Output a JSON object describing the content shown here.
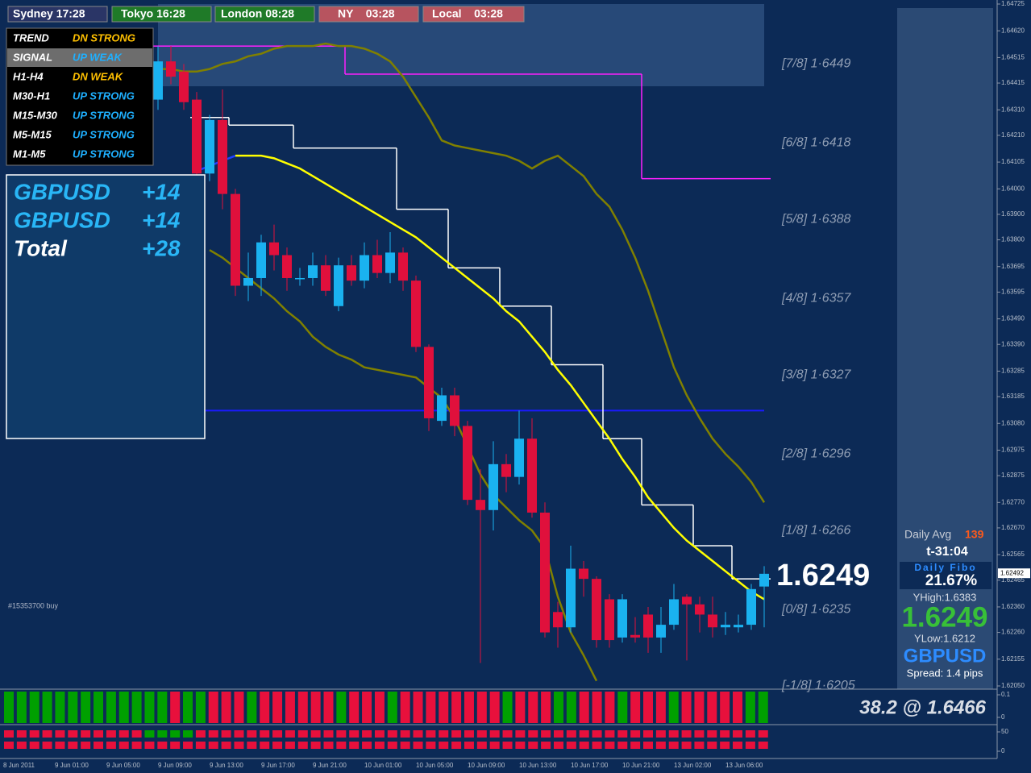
{
  "sessions": [
    "Sydney 17:28",
    "Tokyo 16:28",
    "London 08:28",
    "NY    03:28",
    "Local    03:28"
  ],
  "trend_table": {
    "rows": [
      [
        "TREND",
        "DN STRONG"
      ],
      [
        "SIGNAL",
        "UP WEAK"
      ],
      [
        "H1-H4",
        "DN WEAK"
      ],
      [
        "M30-H1",
        "UP STRONG"
      ],
      [
        "M15-M30",
        "UP STRONG"
      ],
      [
        "M5-M15",
        "UP STRONG"
      ],
      [
        "M1-M5",
        "UP STRONG"
      ]
    ]
  },
  "positions": {
    "rows": [
      [
        "GBPUSD",
        "+14"
      ],
      [
        "GBPUSD",
        "+14"
      ],
      [
        "Total",
        "+28"
      ]
    ]
  },
  "order_note": "#15353700 buy",
  "price_label": "1.6249",
  "info_panel": {
    "daily_avg_label": "Daily Avg",
    "daily_avg": 139,
    "timer": "t-31:04",
    "fibo_label": "Daily Fibo",
    "fibo_value": "21.67%",
    "yhigh": "YHigh:1.6383",
    "price": "1.6249",
    "ylow": "YLow:1.6212",
    "symbol": "GBPUSD",
    "spread": "Spread: 1.4 pips"
  },
  "chart_data": {
    "type": "candlestick",
    "up_color": "#1ab2f0",
    "down_color": "#e0103c",
    "ylim": [
      1.6205,
      1.64725
    ],
    "yticks": [
      1.64725,
      {
        "value": 1.6462,
        "label": "1.64620"
      },
      1.64515,
      1.64415,
      {
        "value": 1.6431,
        "label": "1.64310"
      },
      {
        "value": 1.6421,
        "label": "1.64210"
      },
      1.64105,
      {
        "value": 1.64,
        "label": "1.64000"
      },
      {
        "value": 1.639,
        "label": "1.63900"
      },
      {
        "value": 1.638,
        "label": "1.63800"
      },
      1.63695,
      1.63595,
      {
        "value": 1.6349,
        "label": "1.63490"
      },
      {
        "value": 1.6339,
        "label": "1.63390"
      },
      1.63285,
      1.63185,
      {
        "value": 1.6308,
        "label": "1.63080"
      },
      1.62975,
      1.62875,
      {
        "value": 1.6277,
        "label": "1.62770"
      },
      {
        "value": 1.6267,
        "label": "1.62670"
      },
      1.62565,
      1.62465,
      {
        "value": 1.6236,
        "label": "1.62360"
      },
      {
        "value": 1.6226,
        "label": "1.62260"
      },
      1.62155,
      {
        "value": 1.6205,
        "label": "1.62050"
      }
    ],
    "current_price": 1.62492,
    "time_labels": [
      "8 Jun 2011",
      "9 Jun 01:00",
      "9 Jun 05:00",
      "9 Jun 09:00",
      "9 Jun 13:00",
      "9 Jun 17:00",
      "9 Jun 21:00",
      "10 Jun 01:00",
      "10 Jun 05:00",
      "10 Jun 09:00",
      "10 Jun 13:00",
      "10 Jun 17:00",
      "10 Jun 21:00",
      "13 Jun 02:00",
      "13 Jun 06:00"
    ],
    "open": [
      1.6435,
      1.645,
      1.6446,
      1.6435,
      1.6406,
      1.6427,
      1.6398,
      1.6362,
      1.6365,
      1.6379,
      1.6374,
      1.6365,
      1.6365,
      1.637,
      1.6354,
      1.637,
      1.6364,
      1.6374,
      1.6367,
      1.6375,
      1.6364,
      1.6338,
      1.6309,
      1.6319,
      1.6307,
      1.6278,
      1.6274,
      1.6292,
      1.6287,
      1.6302,
      1.6273,
      1.6234,
      1.6228,
      1.6251,
      1.6247,
      1.6239,
      1.6224,
      1.6225,
      1.6233,
      1.6224,
      1.6229,
      1.624,
      1.6237,
      1.6233,
      1.6228,
      1.6228,
      1.6229,
      1.6244
    ],
    "high": [
      1.6456,
      1.6456,
      1.6449,
      1.6438,
      1.6429,
      1.6439,
      1.64,
      1.6375,
      1.6382,
      1.6386,
      1.6377,
      1.6369,
      1.6375,
      1.6374,
      1.6373,
      1.6374,
      1.6379,
      1.638,
      1.6383,
      1.6377,
      1.6366,
      1.6339,
      1.6322,
      1.6322,
      1.6309,
      1.629,
      1.6301,
      1.6296,
      1.6313,
      1.631,
      1.6277,
      1.6238,
      1.626,
      1.6254,
      1.6248,
      1.6241,
      1.6241,
      1.6232,
      1.6236,
      1.6236,
      1.6245,
      1.6241,
      1.624,
      1.624,
      1.6234,
      1.6233,
      1.6245,
      1.6252
    ],
    "low": [
      1.6431,
      1.6441,
      1.6431,
      1.6403,
      1.6403,
      1.6392,
      1.6358,
      1.6356,
      1.6358,
      1.6368,
      1.636,
      1.6362,
      1.6362,
      1.6358,
      1.6352,
      1.6362,
      1.6361,
      1.6365,
      1.6363,
      1.636,
      1.6336,
      1.6305,
      1.6307,
      1.6303,
      1.6276,
      1.6214,
      1.6266,
      1.6281,
      1.6284,
      1.6271,
      1.6224,
      1.622,
      1.6226,
      1.624,
      1.622,
      1.622,
      1.6222,
      1.6222,
      1.6218,
      1.6218,
      1.6227,
      1.6215,
      1.6226,
      1.6224,
      1.6225,
      1.6226,
      1.6227,
      1.6228
    ],
    "close": [
      1.645,
      1.6444,
      1.6434,
      1.6406,
      1.6427,
      1.6398,
      1.6362,
      1.6365,
      1.6379,
      1.6374,
      1.6365,
      1.6365,
      1.637,
      1.636,
      1.637,
      1.6364,
      1.6374,
      1.6367,
      1.6375,
      1.6364,
      1.6338,
      1.631,
      1.6319,
      1.6307,
      1.6278,
      1.6274,
      1.6292,
      1.6287,
      1.6302,
      1.6273,
      1.6226,
      1.6228,
      1.6251,
      1.6247,
      1.6223,
      1.6223,
      1.6239,
      1.6224,
      1.6224,
      1.6229,
      1.6239,
      1.6237,
      1.6233,
      1.6228,
      1.6229,
      1.6229,
      1.6243,
      1.6249
    ],
    "lines": [
      {
        "color": "#ff20ff",
        "style": "step",
        "values": [
          1.6456,
          1.6456,
          1.6456,
          1.6456,
          1.6456,
          1.6456,
          1.6456,
          1.6456,
          1.6456,
          1.6456,
          1.6456,
          1.6456,
          1.6456,
          1.6456,
          1.6456,
          1.6445,
          1.6445,
          1.6445,
          1.6445,
          1.6445,
          1.6445,
          1.6445,
          1.6445,
          1.6445,
          1.6445,
          1.6445,
          1.6445,
          1.6445,
          1.6445,
          1.6445,
          1.6445,
          1.6445,
          1.6445,
          1.6445,
          1.6445,
          1.6445,
          1.6445,
          1.6445,
          1.6404,
          1.6404,
          1.6404,
          1.6404,
          1.6404,
          1.6404,
          1.6404,
          1.6404,
          1.6404,
          1.6404
        ]
      },
      {
        "color": "#ffffff",
        "style": "step",
        "values": [
          null,
          null,
          null,
          1.6428,
          1.6428,
          1.6428,
          1.6425,
          1.6425,
          1.6425,
          1.6425,
          1.6425,
          1.6416,
          1.6416,
          1.6416,
          1.6416,
          1.6416,
          1.6416,
          1.6416,
          1.6416,
          1.6392,
          1.6392,
          1.6392,
          1.6392,
          1.6369,
          1.6369,
          1.6369,
          1.6369,
          1.6354,
          1.6354,
          1.6354,
          1.6354,
          1.6331,
          1.6331,
          1.6331,
          1.6331,
          1.6302,
          1.6302,
          1.6302,
          1.6276,
          1.6276,
          1.6276,
          1.6276,
          1.626,
          1.626,
          1.626,
          1.6247,
          1.6247,
          1.6247
        ]
      },
      {
        "color": "#808000",
        "style": "line",
        "values": [
          1.6447,
          1.6447,
          1.6446,
          1.6446,
          1.6447,
          1.6449,
          1.645,
          1.6452,
          1.6453,
          1.6455,
          1.6456,
          1.6456,
          1.6456,
          1.6457,
          1.6456,
          1.6456,
          1.6455,
          1.6453,
          1.645,
          1.6444,
          1.6436,
          1.6428,
          1.6419,
          1.6417,
          1.6416,
          1.6415,
          1.6414,
          1.6413,
          1.6411,
          1.6408,
          1.6411,
          1.6413,
          1.6409,
          1.6405,
          1.6398,
          1.6393,
          1.6384,
          1.6373,
          1.636,
          1.6345,
          1.633,
          1.6319,
          1.631,
          1.6302,
          1.6296,
          1.6291,
          1.6285,
          1.6277
        ]
      },
      {
        "color": "#808000",
        "style": "line",
        "values": [
          null,
          null,
          null,
          null,
          1.6376,
          1.6373,
          1.6369,
          1.6365,
          1.6361,
          1.6357,
          1.6352,
          1.6348,
          1.6342,
          1.6338,
          1.6335,
          1.6333,
          1.633,
          1.6329,
          1.6328,
          1.6327,
          1.6326,
          1.6322,
          1.6318,
          1.631,
          1.6299,
          1.6288,
          1.628,
          1.6275,
          1.627,
          1.6266,
          1.6259,
          1.624,
          1.6226,
          1.6217,
          1.6207,
          null,
          null,
          null,
          null,
          null,
          null,
          null,
          null,
          null,
          null,
          null,
          null,
          null
        ]
      },
      {
        "color": "#2040ff",
        "style": "line",
        "values": [
          null,
          null,
          null,
          1.6407,
          1.6409,
          1.6411,
          1.6413,
          null,
          null,
          null,
          null,
          null,
          null,
          null,
          null,
          null,
          null,
          null,
          null,
          null,
          null,
          null,
          null,
          null,
          null,
          null,
          null,
          null,
          null,
          null,
          null,
          null,
          null,
          null,
          null,
          null,
          null,
          null,
          null,
          null,
          null,
          null,
          null,
          null,
          null,
          null,
          null,
          null
        ]
      },
      {
        "color": "#ffff00",
        "style": "line",
        "values": [
          null,
          null,
          null,
          null,
          null,
          null,
          1.6413,
          1.6413,
          1.6413,
          1.6412,
          1.641,
          1.6408,
          1.6405,
          1.6402,
          1.6399,
          1.6396,
          1.6393,
          1.639,
          1.6387,
          1.6384,
          1.6381,
          1.6377,
          1.6373,
          1.6369,
          1.6365,
          1.6361,
          1.6357,
          1.6352,
          1.6348,
          1.6342,
          1.6336,
          1.6329,
          1.6323,
          1.6316,
          1.6309,
          1.6302,
          1.6294,
          1.6287,
          1.6279,
          1.6273,
          1.6267,
          1.6262,
          1.6258,
          1.6254,
          1.625,
          1.6246,
          1.6242,
          1.6239
        ]
      }
    ],
    "hlines": [
      {
        "value": 1.6313,
        "color": "#1a1aff"
      }
    ],
    "levels": [
      {
        "value": 1.6449,
        "label": "[7/8] 1·6449"
      },
      {
        "value": 1.6418,
        "label": "[6/8] 1·6418"
      },
      {
        "value": 1.6388,
        "label": "[5/8] 1·6388"
      },
      {
        "value": 1.6357,
        "label": "[4/8] 1·6357"
      },
      {
        "value": 1.6327,
        "label": "[3/8] 1·6327"
      },
      {
        "value": 1.6296,
        "label": "[2/8] 1·6296"
      },
      {
        "value": 1.6266,
        "label": "[1/8] 1·6266"
      },
      {
        "value": 1.6235,
        "label": "[0/8] 1·6235"
      },
      {
        "value": 1.6205,
        "label": "[-1/8] 1·6205"
      }
    ],
    "hist": {
      "label": "38.2 @ 1.6466",
      "ylim": [
        0,
        0.1
      ],
      "yticks": [
        0.1,
        0
      ],
      "colors": [
        "#00a000",
        "#00a000",
        "#00a000",
        "#00a000",
        "#00a000",
        "#00a000",
        "#00a000",
        "#00a000",
        "#00a000",
        "#00a000",
        "#00a000",
        "#00a000",
        "#00a000",
        "#e8103c",
        "#00a000",
        "#00a000",
        "#e8103c",
        "#e8103c",
        "#e8103c",
        "#00a000",
        "#e8103c",
        "#e8103c",
        "#e8103c",
        "#e8103c",
        "#e8103c",
        "#e8103c",
        "#00a000",
        "#e8103c",
        "#e8103c",
        "#e8103c",
        "#00a000",
        "#e8103c",
        "#e8103c",
        "#e8103c",
        "#e8103c",
        "#e8103c",
        "#e8103c",
        "#e8103c",
        "#e8103c",
        "#00a000",
        "#e8103c",
        "#e8103c",
        "#e8103c",
        "#00a000",
        "#00a000",
        "#e8103c",
        "#e8103c",
        "#e8103c",
        "#00a000",
        "#e8103c",
        "#e8103c",
        "#e8103c",
        "#00a000",
        "#e8103c",
        "#e8103c",
        "#e8103c",
        "#e8103c",
        "#e8103c",
        "#00a000",
        "#00a000"
      ]
    },
    "squares": {
      "ylim": [
        0,
        50
      ],
      "yticks": [
        50,
        0
      ],
      "rows": [
        [
          "#e8103c",
          "#e8103c",
          "#e8103c",
          "#e8103c",
          "#e8103c",
          "#e8103c",
          "#e8103c",
          "#e8103c",
          "#e8103c",
          "#e8103c",
          "#e8103c",
          "#00a000",
          "#00a000",
          "#00a000",
          "#00a000",
          "#e8103c",
          "#e8103c",
          "#e8103c",
          "#e8103c",
          "#e8103c",
          "#e8103c",
          "#e8103c",
          "#e8103c",
          "#e8103c",
          "#e8103c",
          "#e8103c",
          "#e8103c",
          "#e8103c",
          "#e8103c",
          "#e8103c",
          "#e8103c",
          "#e8103c",
          "#e8103c",
          "#e8103c",
          "#e8103c",
          "#e8103c",
          "#e8103c",
          "#e8103c",
          "#e8103c",
          "#e8103c",
          "#e8103c",
          "#e8103c",
          "#e8103c",
          "#e8103c",
          "#e8103c",
          "#e8103c",
          "#e8103c",
          "#e8103c",
          "#e8103c",
          "#e8103c",
          "#e8103c",
          "#e8103c",
          "#e8103c",
          "#e8103c",
          "#e8103c",
          "#e8103c",
          "#e8103c",
          "#e8103c",
          "#e8103c",
          "#e8103c"
        ],
        [
          "#e8103c",
          "#e8103c",
          "#e8103c",
          "#e8103c",
          "#e8103c",
          "#e8103c",
          "#e8103c",
          "#e8103c",
          "#e8103c",
          "#e8103c",
          "#e8103c",
          "#e8103c",
          "#e8103c",
          "#e8103c",
          "#e8103c",
          "#e8103c",
          "#e8103c",
          "#e8103c",
          "#e8103c",
          "#e8103c",
          "#e8103c",
          "#e8103c",
          "#e8103c",
          "#e8103c",
          "#e8103c",
          "#e8103c",
          "#e8103c",
          "#e8103c",
          "#e8103c",
          "#e8103c",
          "#e8103c",
          "#e8103c",
          "#e8103c",
          "#e8103c",
          "#e8103c",
          "#e8103c",
          "#e8103c",
          "#e8103c",
          "#e8103c",
          "#e8103c",
          "#e8103c",
          "#e8103c",
          "#e8103c",
          "#e8103c",
          "#e8103c",
          "#e8103c",
          "#e8103c",
          "#e8103c",
          "#e8103c",
          "#e8103c",
          "#e8103c",
          "#e8103c",
          "#e8103c",
          "#e8103c",
          "#e8103c",
          "#e8103c",
          "#e8103c",
          "#e8103c",
          "#e8103c",
          "#e8103c"
        ]
      ]
    }
  }
}
